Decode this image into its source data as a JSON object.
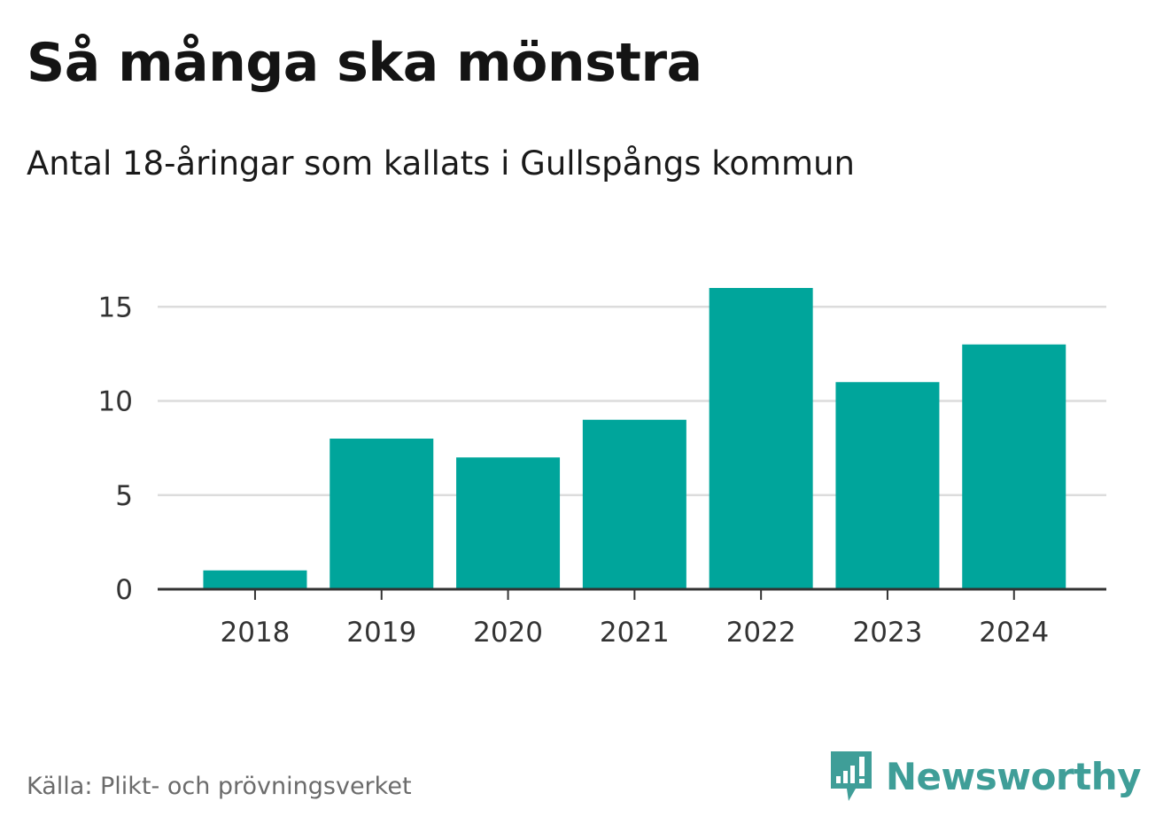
{
  "header": {
    "title": "Så många ska mönstra",
    "subtitle": "Antal 18-åringar som kallats i Gullspångs kommun"
  },
  "footer": {
    "source": "Källa: Plikt- och prövningsverket",
    "brand": "Newsworthy",
    "brand_icon": "newsworthy-logo-icon"
  },
  "colors": {
    "bar": "#00A59B",
    "gridline": "#dcdcdc",
    "axis": "#333333",
    "brand": "#3f9e98"
  },
  "chart_data": {
    "type": "bar",
    "title": "Så många ska mönstra",
    "subtitle": "Antal 18-åringar som kallats i Gullspångs kommun",
    "xlabel": "",
    "ylabel": "",
    "categories": [
      "2018",
      "2019",
      "2020",
      "2021",
      "2022",
      "2023",
      "2024"
    ],
    "values": [
      1,
      8,
      7,
      9,
      16,
      11,
      13
    ],
    "ylim": [
      0,
      16
    ],
    "yticks": [
      0,
      5,
      10,
      15
    ],
    "ytick_labels": [
      "0",
      "5",
      "10",
      "15"
    ],
    "grid": true,
    "legend": "none"
  }
}
